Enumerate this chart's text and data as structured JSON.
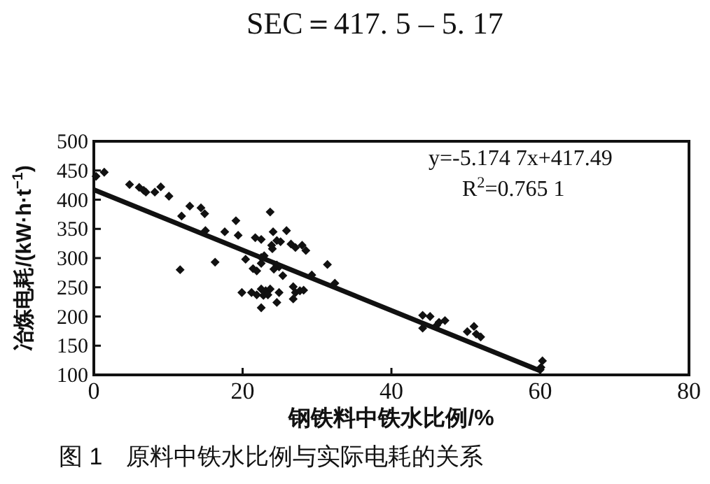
{
  "chart_data": {
    "type": "scatter",
    "xlabel": "钢铁料中铁水比例/%",
    "ylabel": "冶炼电耗/(kW·h·t$^{−1}$)",
    "xlim": [
      0,
      80
    ],
    "xticks": [
      0,
      20,
      40,
      60,
      80
    ],
    "ylim": [
      100,
      500
    ],
    "yticks": [
      100,
      150,
      200,
      250,
      300,
      350,
      400,
      450,
      500
    ],
    "grid": false,
    "legend": false,
    "marker": "diamond",
    "series": [
      {
        "color": "#111111",
        "x": [
          0.3,
          1.4,
          4.8,
          6.1,
          6.7,
          7,
          8.2,
          9.0,
          10.1,
          11.8,
          12.9,
          14.4,
          14.9,
          15.0,
          11.6,
          16.3,
          17.6,
          19.1,
          19.4,
          20.4,
          19.9,
          21.2,
          21.7,
          22.5,
          21.4,
          21.9,
          22.5,
          22.5,
          22.9,
          23.7,
          23.9,
          24.1,
          24.0,
          24.6,
          25.1,
          25.9,
          24.2,
          24.6,
          24.9,
          25.4,
          26.5,
          27.1,
          28.0,
          28.5,
          29.3,
          31.4,
          32.4,
          22.5,
          23.1,
          23.7,
          22.8,
          23.4,
          24.6,
          22.5,
          21.9,
          24.9,
          26.8,
          27.1,
          26.8,
          27.7,
          28.2,
          44.2,
          45.2,
          44.2,
          46.4,
          47.2,
          46.1,
          51.1,
          50.2,
          51.4,
          52.0,
          60.3,
          60.1,
          60.0
        ],
        "values": [
          440,
          447,
          426,
          421,
          416,
          413,
          413,
          422,
          406,
          372,
          389,
          386,
          376,
          347,
          280,
          293,
          345,
          364,
          339,
          298,
          241,
          241,
          335,
          332,
          282,
          278,
          291,
          301,
          304,
          379,
          322,
          345,
          316,
          330,
          328,
          347,
          281,
          288,
          285,
          270,
          324,
          318,
          322,
          313,
          271,
          289,
          257,
          247,
          244,
          247,
          236,
          237,
          224,
          215,
          237,
          241,
          251,
          241,
          230,
          244,
          245,
          202,
          200,
          180,
          190,
          193,
          185,
          183,
          174,
          170,
          165,
          124,
          113,
          109
        ]
      },
      {
        "type": "line",
        "color": "#111111",
        "marker": "none",
        "line_style": "solid",
        "x": [
          0,
          60
        ],
        "values": [
          417,
          107
        ]
      }
    ],
    "annotations": [
      "y=-5.174 7x+417.49",
      "R$^{2}$=0.765 1",
      "SEC＝417. 5 – 5. 17",
      "图 1　原料中铁水比例与实际电耗的关系"
    ]
  }
}
